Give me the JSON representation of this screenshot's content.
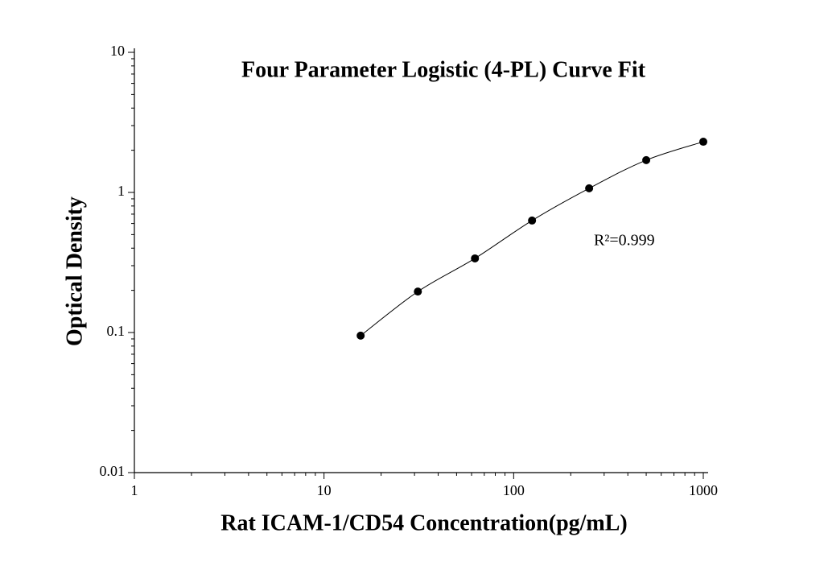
{
  "chart_data": {
    "type": "scatter",
    "title": "Four Parameter Logistic (4-PL) Curve Fit",
    "x_label": "Rat ICAM-1/CD54 Concentration(pg/mL)",
    "y_label": "Optical Density",
    "annotation": "R²=0.999",
    "x": [
      15.6,
      31.25,
      62.5,
      125,
      250,
      500,
      1000
    ],
    "values": [
      0.095,
      0.196,
      0.338,
      0.63,
      1.07,
      1.7,
      2.3
    ],
    "color": "#000000",
    "fit_curve": true,
    "xlim": [
      1,
      1000
    ],
    "ylim": [
      0.01,
      10
    ],
    "xticks": [
      1,
      10,
      100,
      1000
    ],
    "yticks": [
      0.01,
      0.1,
      1,
      10
    ],
    "xscale": "log",
    "yscale": "log",
    "minor_ticks": true,
    "grid": false
  }
}
